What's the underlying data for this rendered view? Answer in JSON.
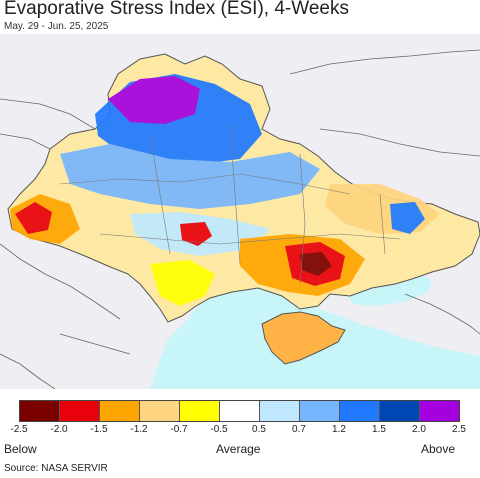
{
  "title": "Evaporative Stress Index (ESI), 4-Weeks",
  "subtitle": "May. 29 - Jun. 25, 2025",
  "legend": {
    "colors": [
      "#7a0000",
      "#e8000b",
      "#ffa500",
      "#ffd580",
      "#ffff00",
      "#ffffff",
      "#bfe8ff",
      "#77b5ff",
      "#1f78ff",
      "#0047b3",
      "#a400e0"
    ],
    "ticks": [
      "-2.5",
      "-2.0",
      "-1.5",
      "-1.2",
      "-0.7",
      "-0.5",
      "0.5",
      "0.7",
      "1.2",
      "1.5",
      "2.0",
      "2.5"
    ],
    "below": "Below",
    "average": "Average",
    "above": "Above"
  },
  "source": "Source: NASA SERVIR",
  "colors": {
    "water": "#c8f5f8",
    "outside_land": "#efeef2",
    "border": "#666666"
  }
}
